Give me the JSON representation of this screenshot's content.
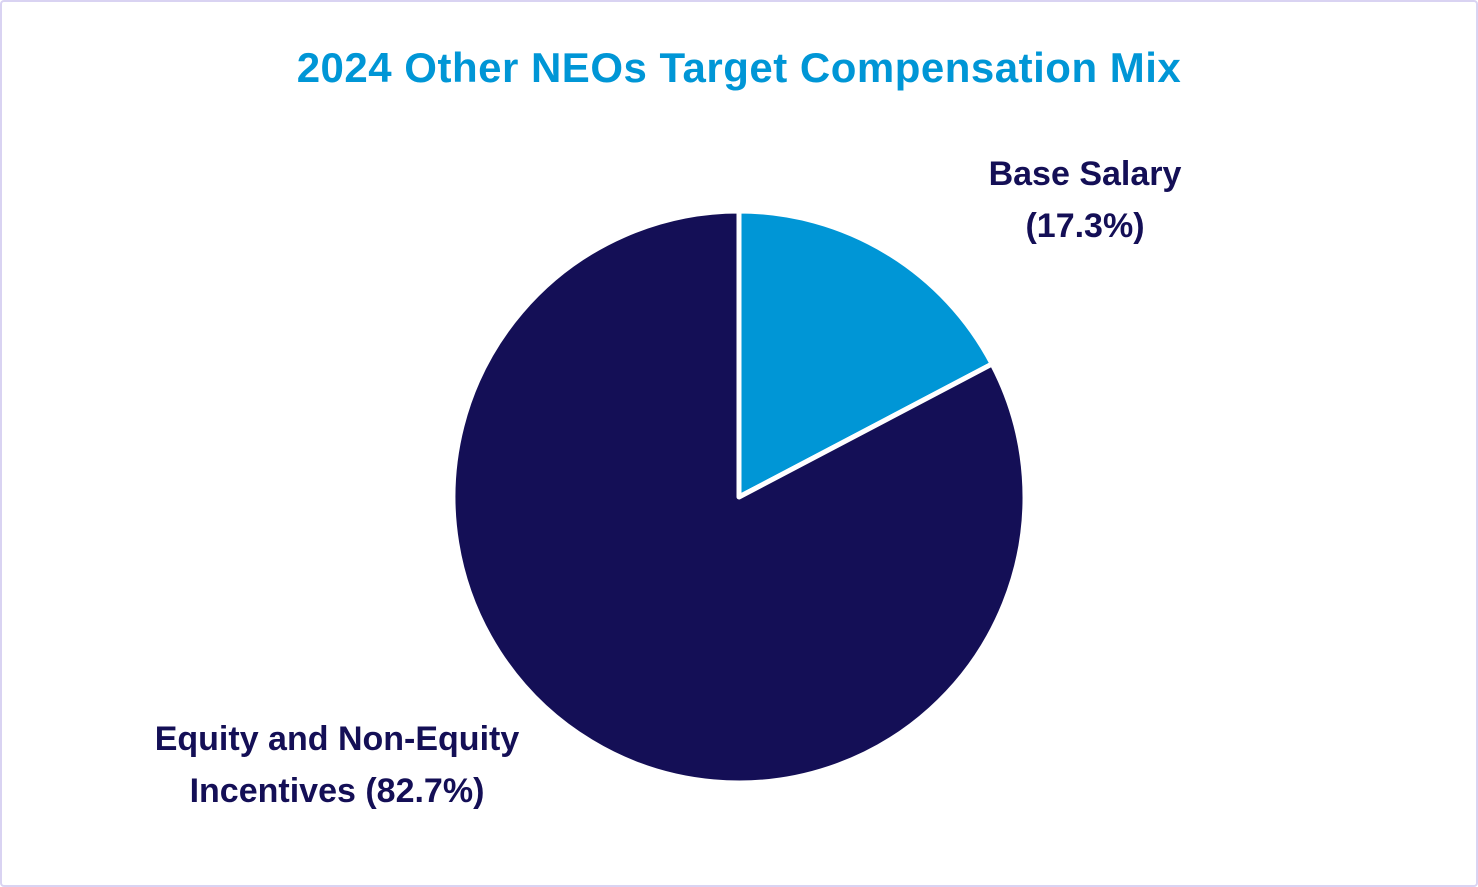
{
  "chart_data": {
    "type": "pie",
    "title": "2024 Other NEOs Target Compensation Mix",
    "slices": [
      {
        "name": "Base Salary",
        "value": 17.3,
        "label_lines": [
          "Base Salary",
          "(17.3%)"
        ],
        "color": "#0096d6"
      },
      {
        "name": "Equity and Non-Equity Incentives",
        "value": 82.7,
        "label_lines": [
          "Equity and Non-Equity",
          "Incentives (82.7%)"
        ],
        "color": "#140f56"
      }
    ],
    "legend": "none",
    "start_angle": "12 o'clock",
    "direction": "clockwise"
  },
  "colors": {
    "title": "#0096d6",
    "label": "#140f56",
    "slice_border": "#ffffff",
    "frame_border": "#d9d3f2"
  }
}
